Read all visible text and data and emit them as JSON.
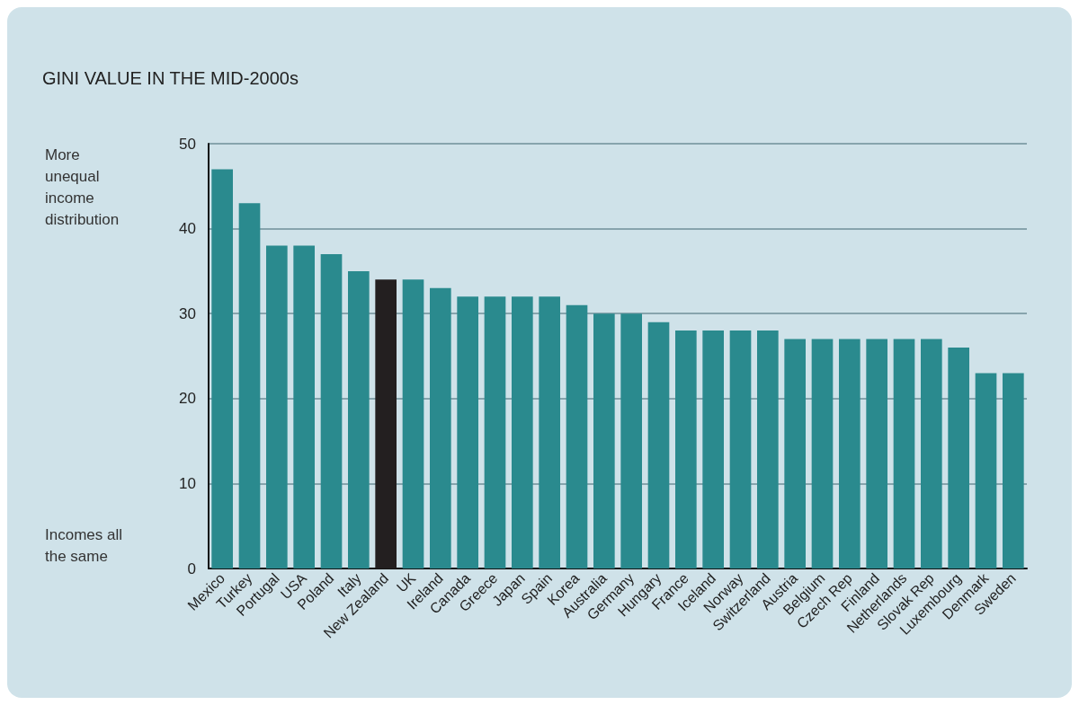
{
  "chart_data": {
    "type": "bar",
    "title": "GINI VALUE IN THE MID-2000s",
    "categories": [
      "Mexico",
      "Turkey",
      "Portugal",
      "USA",
      "Poland",
      "Italy",
      "New Zealand",
      "UK",
      "Ireland",
      "Canada",
      "Greece",
      "Japan",
      "Spain",
      "Korea",
      "Australia",
      "Germany",
      "Hungary",
      "France",
      "Iceland",
      "Norway",
      "Switzerland",
      "Austria",
      "Belgium",
      "Czech Rep",
      "Finland",
      "Netherlands",
      "Slovak Rep",
      "Luxembourg",
      "Denmark",
      "Sweden"
    ],
    "values": [
      47,
      43,
      38,
      38,
      37,
      35,
      34,
      34,
      33,
      32,
      32,
      32,
      32,
      31,
      30,
      30,
      29,
      28,
      28,
      28,
      28,
      27,
      27,
      27,
      27,
      27,
      27,
      26,
      23,
      23
    ],
    "colors": [
      "#2a8a8e",
      "#2a8a8e",
      "#2a8a8e",
      "#2a8a8e",
      "#2a8a8e",
      "#2a8a8e",
      "#231f20",
      "#2a8a8e",
      "#2a8a8e",
      "#2a8a8e",
      "#2a8a8e",
      "#2a8a8e",
      "#2a8a8e",
      "#2a8a8e",
      "#2a8a8e",
      "#2a8a8e",
      "#2a8a8e",
      "#2a8a8e",
      "#2a8a8e",
      "#2a8a8e",
      "#2a8a8e",
      "#2a8a8e",
      "#2a8a8e",
      "#2a8a8e",
      "#2a8a8e",
      "#2a8a8e",
      "#2a8a8e",
      "#2a8a8e",
      "#2a8a8e",
      "#2a8a8e"
    ],
    "ylim": [
      0,
      50
    ],
    "yticks": [
      0,
      10,
      20,
      30,
      40,
      50
    ],
    "grid": "y",
    "annotations": [
      "More\nunequal\nincome\ndistribution",
      "Incomes all\nthe same"
    ]
  }
}
